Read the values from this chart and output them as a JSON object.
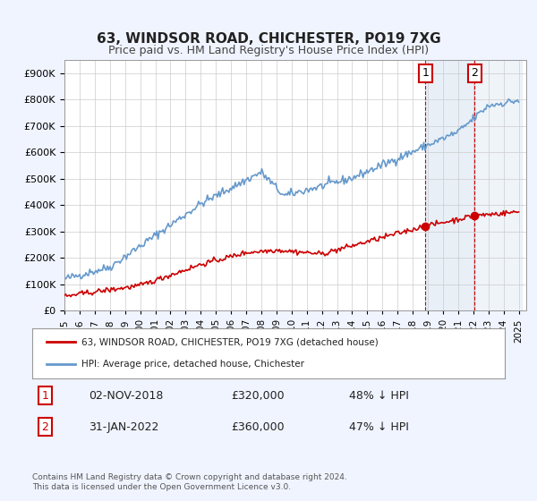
{
  "title": "63, WINDSOR ROAD, CHICHESTER, PO19 7XG",
  "subtitle": "Price paid vs. HM Land Registry's House Price Index (HPI)",
  "ylabel_ticks": [
    "£0",
    "£100K",
    "£200K",
    "£300K",
    "£400K",
    "£500K",
    "£600K",
    "£700K",
    "£800K",
    "£900K"
  ],
  "ylim": [
    0,
    950000
  ],
  "yticks": [
    0,
    100000,
    200000,
    300000,
    400000,
    500000,
    600000,
    700000,
    800000,
    900000
  ],
  "hpi_color": "#6699cc",
  "price_color": "#cc0000",
  "point1_date": "02-NOV-2018",
  "point1_price": 320000,
  "point1_label": "48% ↓ HPI",
  "point2_date": "31-JAN-2022",
  "point2_price": 360000,
  "point2_label": "47% ↓ HPI",
  "legend_property": "63, WINDSOR ROAD, CHICHESTER, PO19 7XG (detached house)",
  "legend_hpi": "HPI: Average price, detached house, Chichester",
  "footnote": "Contains HM Land Registry data © Crown copyright and database right 2024.\nThis data is licensed under the Open Government Licence v3.0.",
  "background_color": "#f0f4ff",
  "plot_bg_color": "#ffffff",
  "grid_color": "#cccccc"
}
